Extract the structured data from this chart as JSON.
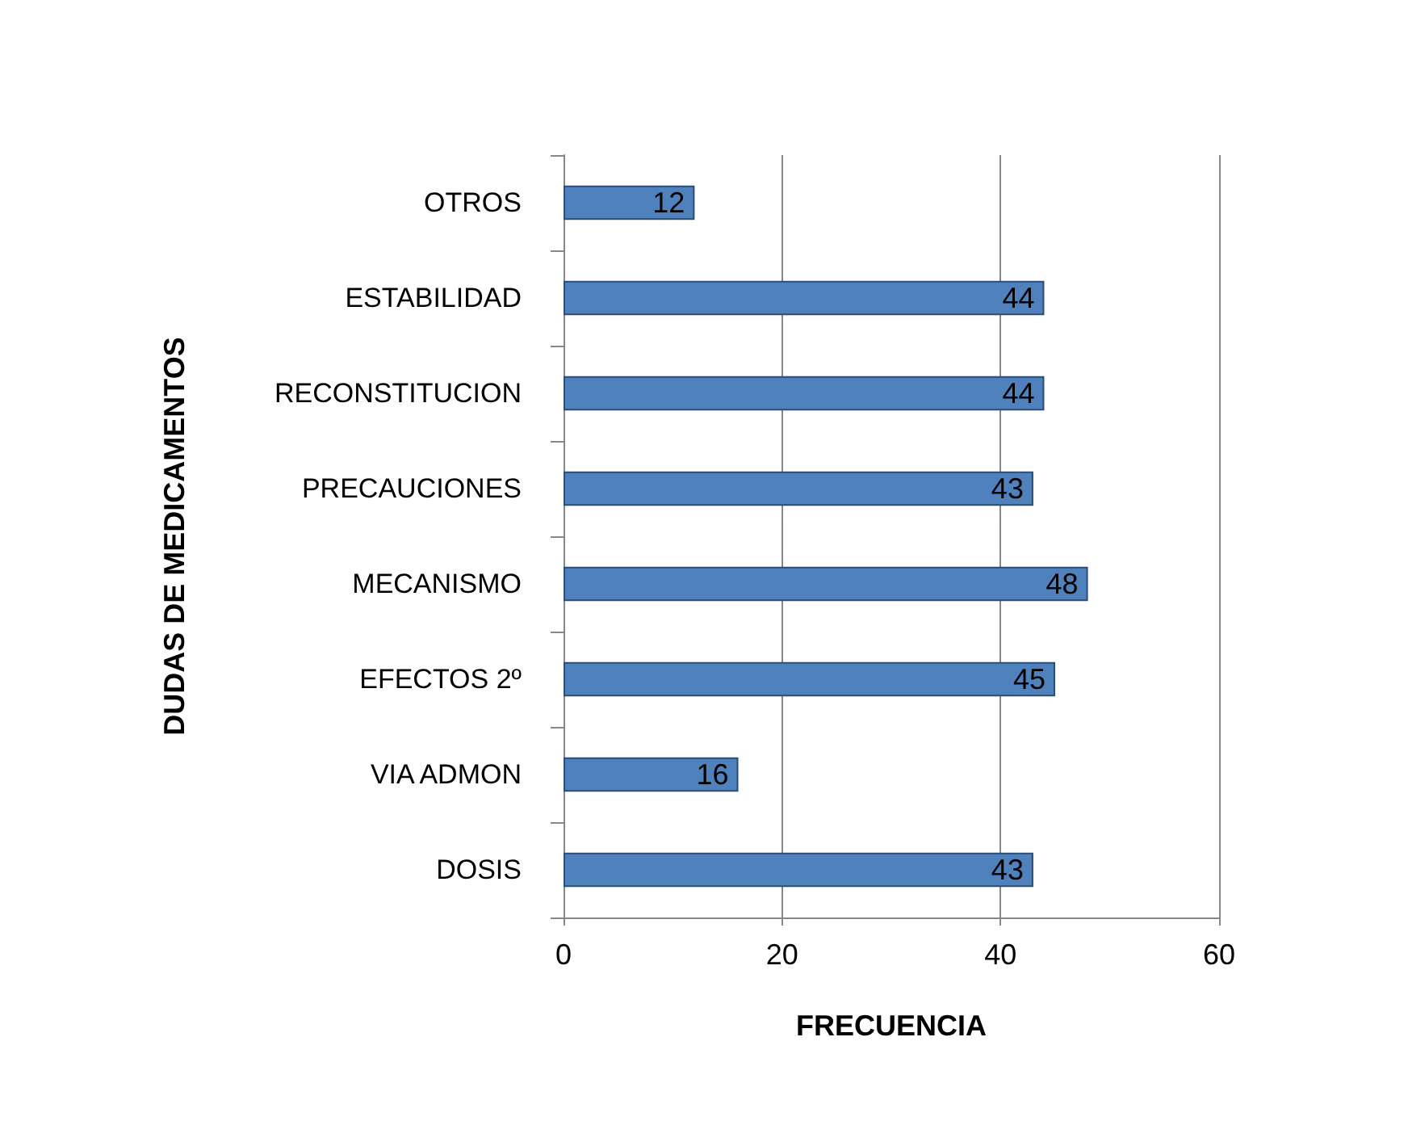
{
  "chart_data": {
    "type": "bar",
    "orientation": "horizontal",
    "xlabel": "FRECUENCIA",
    "ylabel": "DUDAS DE MEDICAMENTOS",
    "categories": [
      "OTROS",
      "ESTABILIDAD",
      "RECONSTITUCION",
      "PRECAUCIONES",
      "MECANISMO",
      "EFECTOS 2º",
      "VIA ADMON",
      "DOSIS"
    ],
    "values": [
      12,
      44,
      44,
      43,
      48,
      45,
      16,
      43
    ],
    "color": "#4f81bd",
    "xlim": [
      0,
      60
    ],
    "xticks": [
      0,
      20,
      40,
      60
    ],
    "grid": "x",
    "data_labels": true
  }
}
